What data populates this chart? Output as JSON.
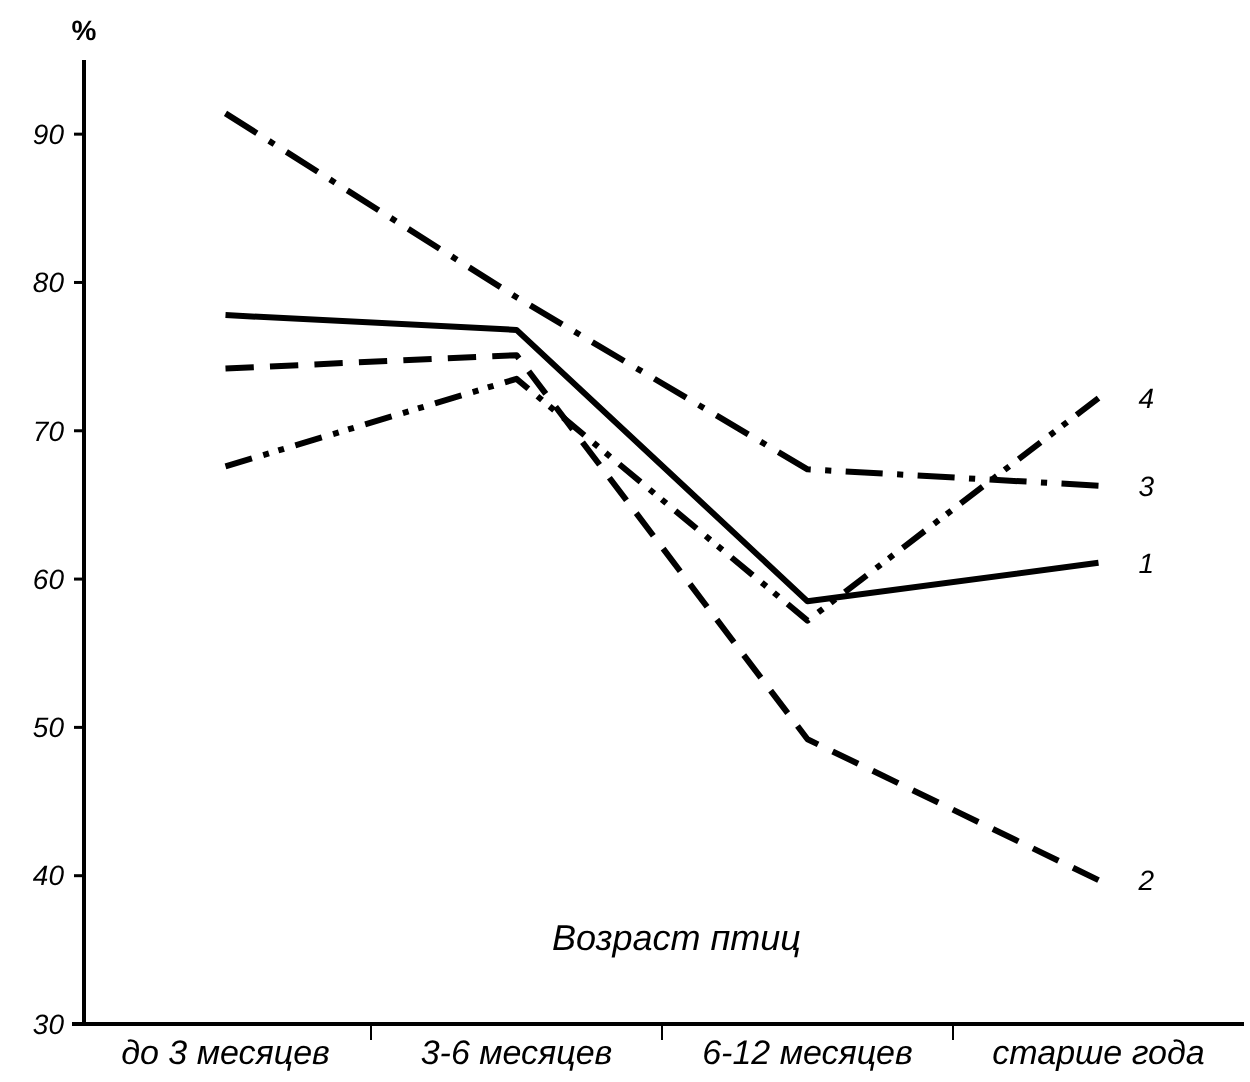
{
  "chart_data": {
    "type": "line",
    "xlabel": "Возраст птиц",
    "ylabel": "%",
    "categories": [
      "до 3 месяцев",
      "3-6 месяцев",
      "6-12 месяцев",
      "старше года"
    ],
    "ylim": [
      30,
      95
    ],
    "yticks": [
      30,
      40,
      50,
      60,
      70,
      80,
      90
    ],
    "grid": false,
    "legend": false,
    "marker": "none",
    "series": [
      {
        "name": "1",
        "color": "#000000",
        "line_style": "solid",
        "values": [
          77.8,
          76.8,
          58.5,
          61.1
        ]
      },
      {
        "name": "2",
        "color": "#000000",
        "line_style": "dashed",
        "values": [
          74.2,
          75.1,
          49.2,
          39.7
        ]
      },
      {
        "name": "3",
        "color": "#000000",
        "line_style": "dashdot",
        "values": [
          91.4,
          79,
          67.4,
          66.3
        ]
      },
      {
        "name": "4",
        "color": "#000000",
        "line_style": "dashdotdot",
        "values": [
          67.6,
          73.5,
          57.2,
          72.2
        ]
      }
    ]
  }
}
